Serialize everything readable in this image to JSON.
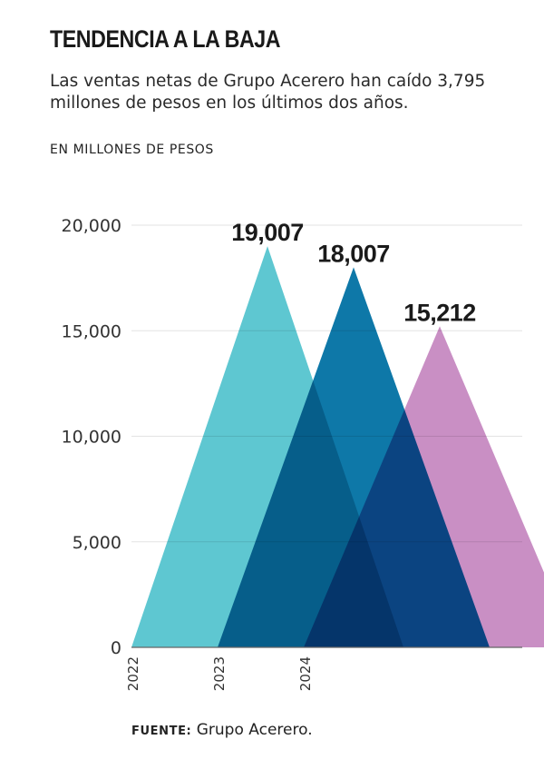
{
  "title": "TENDENCIA A LA BAJA",
  "subtitle": "Las ventas netas de Grupo Acerero han caído 3,795 millones de pesos en los últimos dos años.",
  "unit_label": "EN MILLONES DE PESOS",
  "source": {
    "label": "FUENTE:",
    "text": "Grupo Acerero."
  },
  "chart_data": {
    "type": "area",
    "xlabel": "",
    "ylabel": "",
    "ylim": [
      0,
      20000
    ],
    "yticks": [
      0,
      5000,
      10000,
      15000,
      20000
    ],
    "ytick_labels": [
      "0",
      "5,000",
      "10,000",
      "15,000",
      "20,000"
    ],
    "grid": true,
    "legend": "none",
    "series": [
      {
        "category": "2022",
        "value": 19007,
        "value_label": "19,007",
        "color": "#5ec7d1"
      },
      {
        "category": "2023",
        "value": 18007,
        "value_label": "18,007",
        "color": "#0e78a8"
      },
      {
        "category": "2024",
        "value": 15212,
        "value_label": "15,212",
        "color": "#c98fc4"
      }
    ]
  }
}
